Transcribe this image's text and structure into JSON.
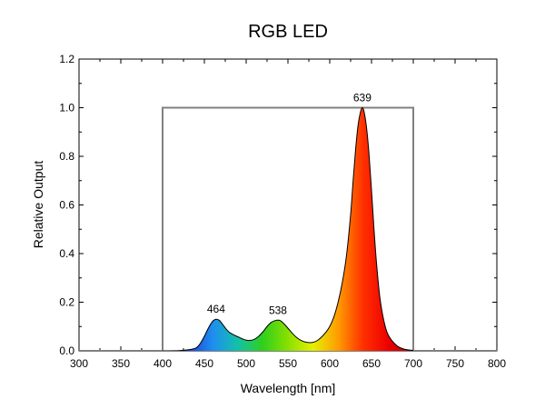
{
  "chart_data": {
    "type": "area",
    "title": "RGB LED",
    "xlabel": "Wavelength [nm]",
    "ylabel": "Relative Output",
    "xlim": [
      300,
      800
    ],
    "ylim": [
      0,
      1.2
    ],
    "x_ticks": [
      "300",
      "350",
      "400",
      "450",
      "500",
      "550",
      "600",
      "650",
      "700",
      "750",
      "800"
    ],
    "y_ticks": [
      "0.0",
      "0.2",
      "0.4",
      "0.6",
      "0.8",
      "1.0",
      "1.2"
    ],
    "grid": false,
    "reference_box": {
      "x_start": 400,
      "x_end": 700,
      "value": 1.0
    },
    "peaks": [
      {
        "x": 464,
        "y": 0.13,
        "label": "464"
      },
      {
        "x": 538,
        "y": 0.125,
        "label": "538"
      },
      {
        "x": 639,
        "y": 1.0,
        "label": "639"
      }
    ],
    "series": [
      {
        "x": [
          400,
          420,
          430,
          440,
          445,
          450,
          455,
          460,
          464,
          468,
          472,
          476,
          480,
          485,
          490,
          495,
          500,
          505,
          510,
          515,
          520,
          525,
          530,
          535,
          538,
          541,
          545,
          550,
          555,
          560,
          565,
          570,
          575,
          580,
          585,
          590,
          595,
          600,
          605,
          610,
          615,
          620,
          625,
          628,
          631,
          634,
          637,
          639,
          641,
          644,
          647,
          650,
          653,
          656,
          660,
          665,
          670,
          680,
          690,
          700
        ],
        "values": [
          0,
          0.001,
          0.004,
          0.012,
          0.03,
          0.06,
          0.095,
          0.122,
          0.13,
          0.125,
          0.108,
          0.09,
          0.076,
          0.066,
          0.058,
          0.05,
          0.044,
          0.043,
          0.048,
          0.06,
          0.078,
          0.1,
          0.117,
          0.125,
          0.126,
          0.124,
          0.112,
          0.093,
          0.073,
          0.056,
          0.044,
          0.037,
          0.034,
          0.035,
          0.042,
          0.056,
          0.075,
          0.1,
          0.14,
          0.2,
          0.28,
          0.39,
          0.56,
          0.7,
          0.83,
          0.93,
          0.985,
          1.0,
          0.985,
          0.92,
          0.81,
          0.66,
          0.5,
          0.36,
          0.22,
          0.12,
          0.065,
          0.022,
          0.006,
          0.002
        ]
      }
    ],
    "colors": {
      "box": "#808080",
      "curve": "#000000",
      "gradient": [
        "#1a0a6e",
        "#1f3fd6",
        "#1e8ef0",
        "#14c1a8",
        "#30d01c",
        "#88e000",
        "#e6f000",
        "#ff9c00",
        "#ff3000",
        "#ee0000",
        "#b80000"
      ]
    }
  }
}
